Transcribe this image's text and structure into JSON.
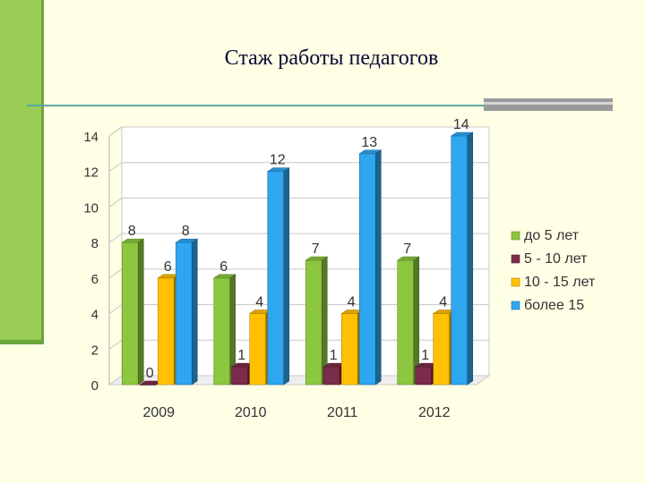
{
  "slide": {
    "title": "Стаж работы педагогов"
  },
  "chart_data": {
    "type": "bar",
    "categories": [
      "2009",
      "2010",
      "2011",
      "2012"
    ],
    "series": [
      {
        "name": "до 5 лет",
        "values": [
          8,
          6,
          7,
          7
        ],
        "color": "#8dc63f"
      },
      {
        "name": "5 - 10 лет",
        "values": [
          0,
          1,
          1,
          1
        ],
        "color": "#7b2c4a"
      },
      {
        "name": "10 - 15 лет",
        "values": [
          6,
          4,
          4,
          4
        ],
        "color": "#ffc000"
      },
      {
        "name": "более 15",
        "values": [
          8,
          12,
          13,
          14
        ],
        "color": "#2ea6f0"
      }
    ],
    "yticks": [
      "0",
      "2",
      "4",
      "6",
      "8",
      "10",
      "12",
      "14"
    ],
    "ylim": [
      0,
      14
    ],
    "grid": true,
    "legend": "right",
    "title": "",
    "xlabel": "",
    "ylabel": ""
  }
}
